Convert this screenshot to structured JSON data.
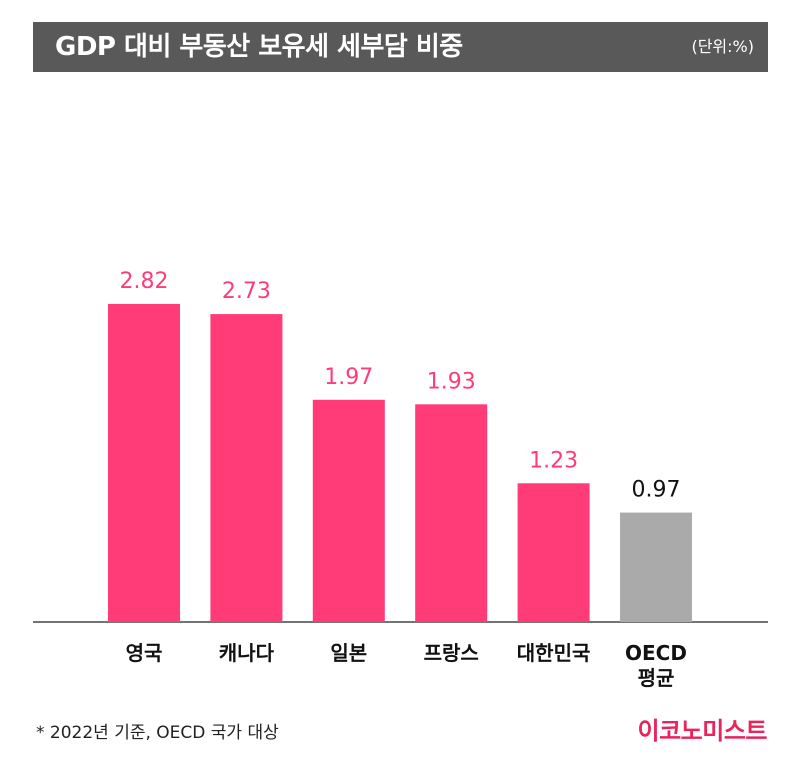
{
  "header": {
    "title": "GDP 대비 부동산 보유세 세부담 비중",
    "unit": "(단위:%)"
  },
  "chart_data": {
    "type": "bar",
    "categories": [
      [
        "영국"
      ],
      [
        "캐나다"
      ],
      [
        "일본"
      ],
      [
        "프랑스"
      ],
      [
        "대한민국"
      ],
      [
        "OECD",
        "평균"
      ]
    ],
    "values": [
      2.82,
      2.73,
      1.97,
      1.93,
      1.23,
      0.97
    ],
    "value_labels": [
      "2.82",
      "2.73",
      "1.97",
      "1.93",
      "1.23",
      "0.97"
    ],
    "colors": [
      "#ff3c78",
      "#ff3c78",
      "#ff3c78",
      "#ff3c78",
      "#ff3c78",
      "#aaaaaa"
    ],
    "label_colors": [
      "#ff3c78",
      "#ff3c78",
      "#ff3c78",
      "#ff3c78",
      "#ff3c78",
      "#111111"
    ],
    "ylim": [
      0,
      3.05
    ],
    "grid": false,
    "legend": "none"
  },
  "footer": {
    "note": "* 2022년 기준, OECD 국가 대상",
    "brand": "이코노미스트"
  }
}
